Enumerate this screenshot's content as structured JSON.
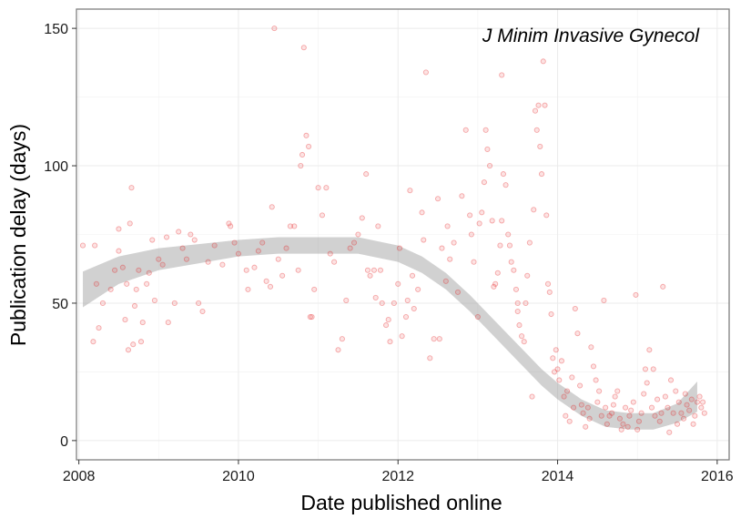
{
  "chart_data": {
    "type": "scatter",
    "title": "J Minim Invasive Gynecol",
    "xlabel": "Date published online",
    "ylabel": "Publication delay (days)",
    "xlim": [
      2007.97,
      2016.15
    ],
    "ylim": [
      -7,
      157
    ],
    "x_ticks": [
      2008,
      2010,
      2012,
      2014,
      2016
    ],
    "x_tick_labels": [
      "2008",
      "2010",
      "2012",
      "2014",
      "2016"
    ],
    "y_ticks": [
      0,
      50,
      100,
      150
    ],
    "y_tick_labels": [
      "0",
      "50",
      "100",
      "150"
    ],
    "grid": true,
    "point_color": "#e41a1c",
    "smooth_band_color": "#999999",
    "series": [
      {
        "kind": "points",
        "points": [
          [
            2008.05,
            71
          ],
          [
            2008.2,
            71
          ],
          [
            2008.22,
            57
          ],
          [
            2008.18,
            36
          ],
          [
            2008.25,
            41
          ],
          [
            2008.3,
            50
          ],
          [
            2008.4,
            55
          ],
          [
            2008.45,
            62
          ],
          [
            2008.5,
            77
          ],
          [
            2008.5,
            69
          ],
          [
            2008.55,
            63
          ],
          [
            2008.58,
            44
          ],
          [
            2008.6,
            57
          ],
          [
            2008.62,
            33
          ],
          [
            2008.64,
            79
          ],
          [
            2008.66,
            92
          ],
          [
            2008.68,
            35
          ],
          [
            2008.7,
            49
          ],
          [
            2008.72,
            55
          ],
          [
            2008.75,
            62
          ],
          [
            2008.78,
            36
          ],
          [
            2008.8,
            43
          ],
          [
            2008.85,
            57
          ],
          [
            2008.88,
            61
          ],
          [
            2008.92,
            73
          ],
          [
            2008.95,
            51
          ],
          [
            2009.0,
            66
          ],
          [
            2009.05,
            64
          ],
          [
            2009.1,
            74
          ],
          [
            2009.12,
            43
          ],
          [
            2009.2,
            50
          ],
          [
            2009.25,
            76
          ],
          [
            2009.3,
            70
          ],
          [
            2009.35,
            66
          ],
          [
            2009.4,
            75
          ],
          [
            2009.45,
            73
          ],
          [
            2009.5,
            50
          ],
          [
            2009.55,
            47
          ],
          [
            2009.62,
            65
          ],
          [
            2009.7,
            71
          ],
          [
            2009.8,
            64
          ],
          [
            2009.88,
            79
          ],
          [
            2009.9,
            78
          ],
          [
            2009.95,
            72
          ],
          [
            2010.0,
            68
          ],
          [
            2010.1,
            62
          ],
          [
            2010.12,
            55
          ],
          [
            2010.2,
            63
          ],
          [
            2010.25,
            69
          ],
          [
            2010.3,
            72
          ],
          [
            2010.35,
            58
          ],
          [
            2010.4,
            56
          ],
          [
            2010.42,
            85
          ],
          [
            2010.45,
            150
          ],
          [
            2010.5,
            66
          ],
          [
            2010.55,
            60
          ],
          [
            2010.6,
            70
          ],
          [
            2010.65,
            78
          ],
          [
            2010.7,
            78
          ],
          [
            2010.75,
            62
          ],
          [
            2010.78,
            100
          ],
          [
            2010.8,
            104
          ],
          [
            2010.82,
            143
          ],
          [
            2010.85,
            111
          ],
          [
            2010.88,
            107
          ],
          [
            2010.9,
            45
          ],
          [
            2010.92,
            45
          ],
          [
            2010.95,
            55
          ],
          [
            2011.0,
            92
          ],
          [
            2011.05,
            82
          ],
          [
            2011.1,
            92
          ],
          [
            2011.15,
            68
          ],
          [
            2011.2,
            65
          ],
          [
            2011.25,
            33
          ],
          [
            2011.3,
            37
          ],
          [
            2011.35,
            51
          ],
          [
            2011.4,
            70
          ],
          [
            2011.45,
            72
          ],
          [
            2011.5,
            75
          ],
          [
            2011.55,
            81
          ],
          [
            2011.6,
            97
          ],
          [
            2011.62,
            62
          ],
          [
            2011.65,
            60
          ],
          [
            2011.7,
            62
          ],
          [
            2011.72,
            52
          ],
          [
            2011.75,
            78
          ],
          [
            2011.78,
            62
          ],
          [
            2011.8,
            50
          ],
          [
            2011.85,
            42
          ],
          [
            2011.88,
            44
          ],
          [
            2011.9,
            36
          ],
          [
            2011.95,
            50
          ],
          [
            2012.0,
            57
          ],
          [
            2012.02,
            70
          ],
          [
            2012.05,
            38
          ],
          [
            2012.1,
            45
          ],
          [
            2012.12,
            51
          ],
          [
            2012.15,
            91
          ],
          [
            2012.18,
            60
          ],
          [
            2012.2,
            48
          ],
          [
            2012.25,
            55
          ],
          [
            2012.3,
            83
          ],
          [
            2012.32,
            73
          ],
          [
            2012.35,
            134
          ],
          [
            2012.4,
            30
          ],
          [
            2012.45,
            37
          ],
          [
            2012.5,
            88
          ],
          [
            2012.52,
            37
          ],
          [
            2012.55,
            70
          ],
          [
            2012.6,
            58
          ],
          [
            2012.62,
            78
          ],
          [
            2012.65,
            66
          ],
          [
            2012.7,
            72
          ],
          [
            2012.75,
            54
          ],
          [
            2012.8,
            89
          ],
          [
            2012.85,
            113
          ],
          [
            2012.9,
            82
          ],
          [
            2012.92,
            75
          ],
          [
            2012.95,
            65
          ],
          [
            2013.0,
            45
          ],
          [
            2013.02,
            79
          ],
          [
            2013.05,
            83
          ],
          [
            2013.08,
            94
          ],
          [
            2013.1,
            113
          ],
          [
            2013.12,
            106
          ],
          [
            2013.15,
            100
          ],
          [
            2013.18,
            80
          ],
          [
            2013.2,
            56
          ],
          [
            2013.22,
            57
          ],
          [
            2013.25,
            61
          ],
          [
            2013.28,
            71
          ],
          [
            2013.3,
            80
          ],
          [
            2013.3,
            133
          ],
          [
            2013.32,
            97
          ],
          [
            2013.35,
            93
          ],
          [
            2013.38,
            75
          ],
          [
            2013.4,
            71
          ],
          [
            2013.42,
            65
          ],
          [
            2013.45,
            62
          ],
          [
            2013.48,
            55
          ],
          [
            2013.5,
            50
          ],
          [
            2013.5,
            47
          ],
          [
            2013.52,
            42
          ],
          [
            2013.55,
            38
          ],
          [
            2013.58,
            36
          ],
          [
            2013.6,
            50
          ],
          [
            2013.62,
            60
          ],
          [
            2013.65,
            72
          ],
          [
            2013.68,
            16
          ],
          [
            2013.7,
            84
          ],
          [
            2013.72,
            120
          ],
          [
            2013.74,
            113
          ],
          [
            2013.76,
            122
          ],
          [
            2013.78,
            107
          ],
          [
            2013.8,
            97
          ],
          [
            2013.82,
            138
          ],
          [
            2013.84,
            122
          ],
          [
            2013.86,
            82
          ],
          [
            2013.88,
            57
          ],
          [
            2013.9,
            54
          ],
          [
            2013.92,
            46
          ],
          [
            2013.94,
            30
          ],
          [
            2013.96,
            25
          ],
          [
            2013.98,
            33
          ],
          [
            2014.0,
            26
          ],
          [
            2014.02,
            22
          ],
          [
            2014.05,
            29
          ],
          [
            2014.08,
            16
          ],
          [
            2014.1,
            9
          ],
          [
            2014.12,
            18
          ],
          [
            2014.15,
            7
          ],
          [
            2014.18,
            23
          ],
          [
            2014.2,
            12
          ],
          [
            2014.22,
            48
          ],
          [
            2014.25,
            39
          ],
          [
            2014.28,
            20
          ],
          [
            2014.3,
            13
          ],
          [
            2014.32,
            10
          ],
          [
            2014.35,
            5
          ],
          [
            2014.38,
            12
          ],
          [
            2014.4,
            8
          ],
          [
            2014.42,
            34
          ],
          [
            2014.45,
            27
          ],
          [
            2014.48,
            22
          ],
          [
            2014.5,
            14
          ],
          [
            2014.52,
            18
          ],
          [
            2014.55,
            9
          ],
          [
            2014.58,
            51
          ],
          [
            2014.6,
            12
          ],
          [
            2014.62,
            6
          ],
          [
            2014.65,
            9
          ],
          [
            2014.68,
            10
          ],
          [
            2014.7,
            13
          ],
          [
            2014.72,
            16
          ],
          [
            2014.75,
            18
          ],
          [
            2014.78,
            8
          ],
          [
            2014.8,
            4
          ],
          [
            2014.82,
            6
          ],
          [
            2014.85,
            12
          ],
          [
            2014.88,
            5
          ],
          [
            2014.9,
            9
          ],
          [
            2014.92,
            11
          ],
          [
            2014.95,
            14
          ],
          [
            2014.98,
            53
          ],
          [
            2015.0,
            4
          ],
          [
            2015.02,
            7
          ],
          [
            2015.05,
            10
          ],
          [
            2015.08,
            17
          ],
          [
            2015.1,
            26
          ],
          [
            2015.12,
            21
          ],
          [
            2015.15,
            33
          ],
          [
            2015.18,
            12
          ],
          [
            2015.2,
            26
          ],
          [
            2015.22,
            9
          ],
          [
            2015.25,
            15
          ],
          [
            2015.28,
            7
          ],
          [
            2015.3,
            10
          ],
          [
            2015.32,
            56
          ],
          [
            2015.35,
            16
          ],
          [
            2015.38,
            12
          ],
          [
            2015.4,
            3
          ],
          [
            2015.42,
            22
          ],
          [
            2015.45,
            10
          ],
          [
            2015.48,
            18
          ],
          [
            2015.5,
            6
          ],
          [
            2015.52,
            14
          ],
          [
            2015.55,
            10
          ],
          [
            2015.58,
            8
          ],
          [
            2015.6,
            17
          ],
          [
            2015.62,
            13
          ],
          [
            2015.65,
            11
          ],
          [
            2015.68,
            15
          ],
          [
            2015.7,
            6
          ],
          [
            2015.72,
            9
          ],
          [
            2015.75,
            14
          ],
          [
            2015.78,
            16
          ],
          [
            2015.8,
            12
          ],
          [
            2015.82,
            14
          ],
          [
            2015.84,
            10
          ]
        ]
      },
      {
        "kind": "smooth",
        "points": [
          [
            2008.05,
            55
          ],
          [
            2008.5,
            62
          ],
          [
            2009.0,
            66
          ],
          [
            2009.5,
            68
          ],
          [
            2010.0,
            70
          ],
          [
            2010.5,
            71
          ],
          [
            2011.0,
            71
          ],
          [
            2011.5,
            71
          ],
          [
            2012.0,
            68
          ],
          [
            2012.3,
            64
          ],
          [
            2012.6,
            58
          ],
          [
            2012.9,
            50
          ],
          [
            2013.2,
            41
          ],
          [
            2013.5,
            32
          ],
          [
            2013.8,
            23
          ],
          [
            2014.0,
            18
          ],
          [
            2014.3,
            12
          ],
          [
            2014.6,
            8
          ],
          [
            2014.9,
            7
          ],
          [
            2015.2,
            7
          ],
          [
            2015.5,
            10
          ],
          [
            2015.75,
            16
          ]
        ],
        "band_halfwidth": [
          6.5,
          5,
          4,
          3.5,
          3,
          3,
          3,
          3,
          3,
          3,
          3,
          3,
          3,
          3,
          3,
          3,
          3,
          3,
          3,
          3,
          3.5,
          5.5
        ]
      }
    ]
  }
}
